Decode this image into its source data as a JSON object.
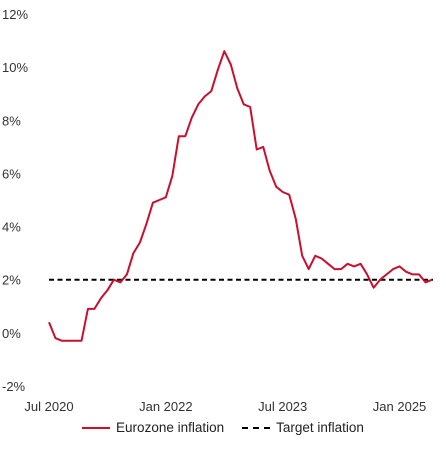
{
  "chart_data": {
    "type": "line",
    "title": "",
    "xlabel": "",
    "ylabel": "",
    "ylim": [
      -2,
      12
    ],
    "yticks": [
      "-2%",
      "0%",
      "2%",
      "4%",
      "6%",
      "8%",
      "10%",
      "12%"
    ],
    "xticks": [
      {
        "label": "Jul 2020",
        "index": 0
      },
      {
        "label": "Jan 2022",
        "index": 18
      },
      {
        "label": "Jul 2023",
        "index": 36
      },
      {
        "label": "Jan 2025",
        "index": 54
      }
    ],
    "start_month": "2020-07",
    "series": [
      {
        "name": "Eurozone inflation",
        "color": "#c8102e",
        "style": "solid",
        "values": [
          0.4,
          -0.2,
          -0.3,
          -0.3,
          -0.3,
          -0.3,
          0.9,
          0.9,
          1.3,
          1.6,
          2.0,
          1.9,
          2.2,
          3.0,
          3.4,
          4.1,
          4.9,
          5.0,
          5.1,
          5.9,
          7.4,
          7.4,
          8.1,
          8.6,
          8.9,
          9.1,
          9.9,
          10.6,
          10.1,
          9.2,
          8.6,
          8.5,
          6.9,
          7.0,
          6.1,
          5.5,
          5.3,
          5.2,
          4.3,
          2.9,
          2.4,
          2.9,
          2.8,
          2.6,
          2.4,
          2.4,
          2.6,
          2.5,
          2.6,
          2.2,
          1.7,
          2.0,
          2.2,
          2.4,
          2.5,
          2.3,
          2.2,
          2.2,
          1.9,
          2.0
        ]
      },
      {
        "name": "Target inflation",
        "color": "#000000",
        "style": "dashed",
        "values": [
          2.0,
          2.0
        ]
      }
    ],
    "legend": {
      "position": "bottom",
      "items": [
        {
          "label": "Eurozone inflation",
          "style": "solid",
          "color": "#c8102e"
        },
        {
          "label": "Target inflation",
          "style": "dashed",
          "color": "#000000"
        }
      ]
    },
    "grid": false
  }
}
